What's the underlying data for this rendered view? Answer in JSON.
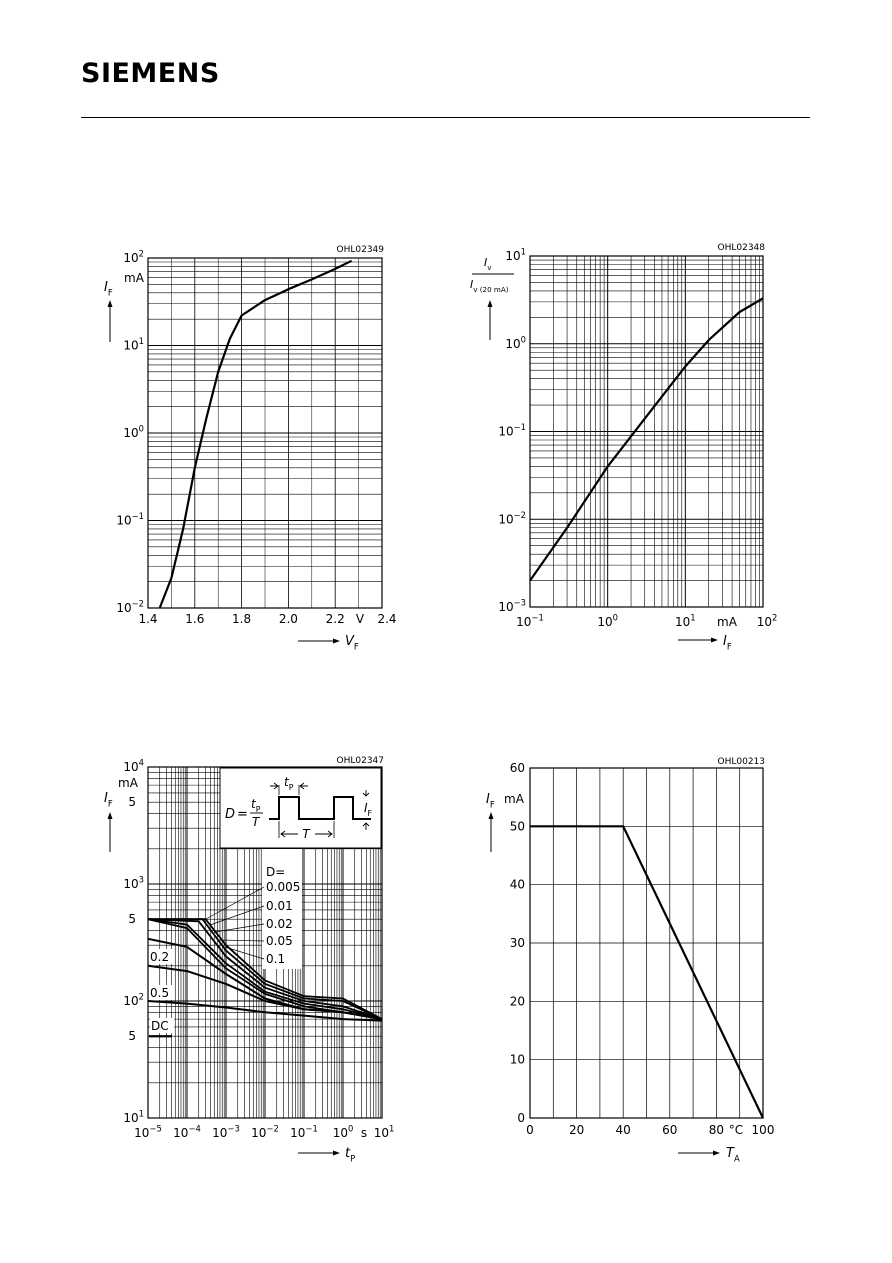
{
  "header": {
    "brand": "SIEMENS"
  },
  "chart_data": [
    {
      "id": "OHL02349",
      "type": "line",
      "y_scale": "log",
      "x": [
        1.45,
        1.5,
        1.55,
        1.6,
        1.65,
        1.7,
        1.75,
        1.8,
        1.9,
        2.0,
        2.1,
        2.2,
        2.27
      ],
      "series": [
        {
          "y": [
            0.01,
            0.022,
            0.08,
            0.4,
            1.5,
            5,
            12,
            22,
            33,
            44,
            57,
            75,
            93
          ]
        }
      ],
      "xlim": [
        1.4,
        2.4
      ],
      "ylim": [
        0.01,
        100
      ],
      "xticks": [
        1.4,
        1.6,
        1.8,
        2.0,
        2.2,
        2.4
      ],
      "xtick_labels": [
        "1.4",
        "1.6",
        "1.8",
        "2.0",
        "2.2",
        "2.4"
      ],
      "x_unit": "V",
      "x_symbol": "V",
      "x_sub": "F",
      "y_unit": "mA",
      "y_symbol": "I",
      "y_sub": "F",
      "ytick_mant": [
        "10",
        "10",
        "10",
        "10",
        "10"
      ],
      "ytick_exp": [
        "-2",
        "-1",
        "0",
        "1",
        "2"
      ],
      "grid": true
    },
    {
      "id": "OHL02348",
      "type": "line",
      "x_scale": "log",
      "y_scale": "log",
      "x": [
        0.1,
        0.3,
        1,
        3,
        10,
        20,
        50,
        100
      ],
      "series": [
        {
          "y": [
            0.002,
            0.008,
            0.04,
            0.14,
            0.55,
            1.1,
            2.3,
            3.3
          ]
        }
      ],
      "xlim": [
        0.1,
        100
      ],
      "ylim": [
        0.001,
        10
      ],
      "xtick_mant": [
        "10",
        "10",
        "10",
        "10"
      ],
      "xtick_exp": [
        "-1",
        "0",
        "1",
        "2"
      ],
      "ytick_mant": [
        "10",
        "10",
        "10",
        "10",
        "10"
      ],
      "ytick_exp": [
        "-3",
        "-2",
        "-1",
        "0",
        "1"
      ],
      "x_unit": "mA",
      "x_symbol": "I",
      "x_sub": "F",
      "y_label_num": "I",
      "y_label_num_sub": "v",
      "y_label_den": "I",
      "y_label_den_sub": "v (20 mA)",
      "grid": true
    },
    {
      "id": "OHL02347",
      "type": "line",
      "x_scale": "log",
      "y_scale": "log",
      "xlim": [
        1e-05,
        10
      ],
      "ylim": [
        10,
        10000
      ],
      "xtick_mant": [
        "10",
        "10",
        "10",
        "10",
        "10",
        "10",
        "10"
      ],
      "xtick_exp": [
        "-5",
        "-4",
        "-3",
        "-2",
        "-1",
        "0",
        "1"
      ],
      "x_unit": "s",
      "x_symbol": "t",
      "x_sub": "P",
      "y_unit": "mA",
      "y_symbol": "I",
      "y_sub": "F",
      "ytick_mant": [
        "10",
        "10",
        "10",
        "10"
      ],
      "ytick_exp": [
        "1",
        "2",
        "3",
        "4"
      ],
      "ytick_five": [
        "5",
        "5",
        "5"
      ],
      "legend_title": "D=",
      "series": [
        {
          "name": "0.005",
          "x": [
            1e-05,
            0.0003,
            0.001,
            0.01,
            0.1,
            1,
            10
          ],
          "y": [
            500,
            500,
            300,
            150,
            110,
            105,
            70
          ]
        },
        {
          "name": "0.01",
          "x": [
            1e-05,
            0.00025,
            0.001,
            0.01,
            0.1,
            1,
            10
          ],
          "y": [
            500,
            500,
            270,
            140,
            105,
            100,
            70
          ]
        },
        {
          "name": "0.02",
          "x": [
            1e-05,
            0.0002,
            0.001,
            0.01,
            0.1,
            1,
            10
          ],
          "y": [
            500,
            480,
            240,
            130,
            100,
            90,
            70
          ]
        },
        {
          "name": "0.05",
          "x": [
            1e-05,
            0.0001,
            0.001,
            0.01,
            0.1,
            1,
            10
          ],
          "y": [
            500,
            450,
            210,
            120,
            95,
            85,
            70
          ]
        },
        {
          "name": "0.1",
          "x": [
            1e-05,
            0.0001,
            0.001,
            0.01,
            0.1,
            1,
            10
          ],
          "y": [
            500,
            420,
            190,
            115,
            90,
            80,
            70
          ]
        },
        {
          "name": "0.2",
          "x": [
            1e-05,
            0.0001,
            0.001,
            0.01,
            0.1,
            1,
            10
          ],
          "y": [
            340,
            290,
            170,
            105,
            85,
            80,
            70
          ]
        },
        {
          "name": "0.5",
          "x": [
            1e-05,
            0.0001,
            0.001,
            0.01,
            0.1,
            1,
            10
          ],
          "y": [
            200,
            180,
            140,
            100,
            85,
            80,
            70
          ]
        },
        {
          "name": "DC",
          "x": [
            1e-05,
            0.0001,
            0.001,
            0.01,
            0.1,
            1,
            10
          ],
          "y": [
            100,
            95,
            88,
            80,
            75,
            70,
            68
          ]
        }
      ],
      "dc_marker_value": 50,
      "inset": {
        "D": "D",
        "tp": "t",
        "tp_sub": "P",
        "T": "T",
        "IF": "I",
        "IF_sub": "F"
      },
      "grid": true
    },
    {
      "id": "OHL00213",
      "type": "line",
      "x": [
        0,
        40,
        100
      ],
      "series": [
        {
          "y": [
            50,
            50,
            0
          ]
        }
      ],
      "xlim": [
        0,
        100
      ],
      "ylim": [
        0,
        60
      ],
      "xticks": [
        0,
        20,
        40,
        60,
        80,
        100
      ],
      "xtick_labels": [
        "0",
        "20",
        "40",
        "60",
        "80",
        "100"
      ],
      "yticks": [
        0,
        10,
        20,
        30,
        40,
        50,
        60
      ],
      "ytick_labels": [
        "0",
        "10",
        "20",
        "30",
        "40",
        "50",
        "60"
      ],
      "x_unit": "°C",
      "x_symbol": "T",
      "x_sub": "A",
      "y_unit": "mA",
      "y_symbol": "I",
      "y_sub": "F",
      "grid": true
    }
  ]
}
